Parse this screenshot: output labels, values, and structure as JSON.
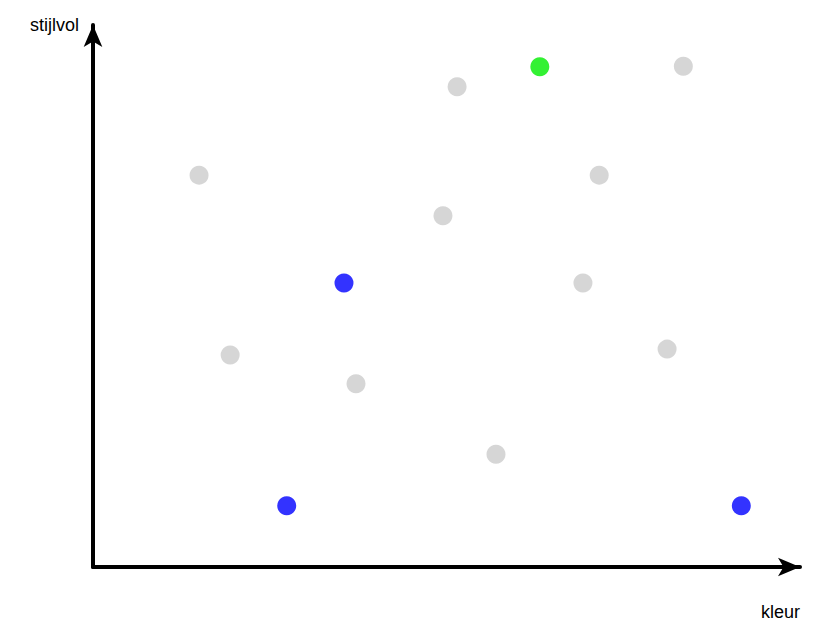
{
  "chart_data": {
    "type": "scatter",
    "x_label": "kleur",
    "y_label": "stijlvol",
    "x": [
      51.5,
      83.5,
      15.0,
      71.6,
      49.5,
      69.3,
      19.4,
      37.2,
      81.2,
      57.0,
      35.5,
      27.4,
      91.7,
      63.2
    ],
    "values": [
      88.6,
      92.4,
      72.3,
      72.3,
      64.8,
      52.4,
      39.1,
      33.8,
      40.2,
      20.8,
      52.4,
      11.3,
      11.3,
      92.3
    ],
    "colors": [
      "#cccccc",
      "#cccccc",
      "#cccccc",
      "#cccccc",
      "#cccccc",
      "#cccccc",
      "#cccccc",
      "#cccccc",
      "#cccccc",
      "#cccccc",
      "#0000ff",
      "#0000ff",
      "#0000ff",
      "#00ee00"
    ],
    "xlim": [
      0,
      100
    ],
    "ylim": [
      0,
      100
    ],
    "tick_labels": false,
    "grid": false
  }
}
